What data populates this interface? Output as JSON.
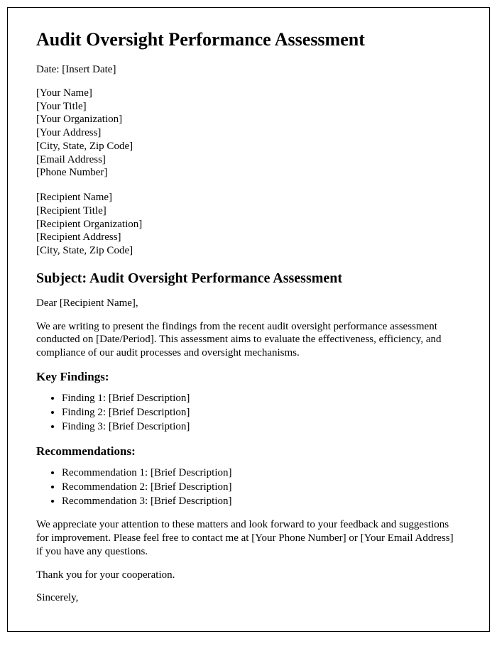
{
  "title": "Audit Oversight Performance Assessment",
  "date_line": "Date: [Insert Date]",
  "sender": {
    "name": "[Your Name]",
    "title": "[Your Title]",
    "organization": "[Your Organization]",
    "address": "[Your Address]",
    "city_state_zip": "[City, State, Zip Code]",
    "email": "[Email Address]",
    "phone": "[Phone Number]"
  },
  "recipient": {
    "name": "[Recipient Name]",
    "title": "[Recipient Title]",
    "organization": "[Recipient Organization]",
    "address": "[Recipient Address]",
    "city_state_zip": "[City, State, Zip Code]"
  },
  "subject_line": "Subject: Audit Oversight Performance Assessment",
  "salutation": "Dear [Recipient Name],",
  "intro_paragraph": "We are writing to present the findings from the recent audit oversight performance assessment conducted on [Date/Period]. This assessment aims to evaluate the effectiveness, efficiency, and compliance of our audit processes and oversight mechanisms.",
  "findings_heading": "Key Findings:",
  "findings": [
    "Finding 1: [Brief Description]",
    "Finding 2: [Brief Description]",
    "Finding 3: [Brief Description]"
  ],
  "recommendations_heading": "Recommendations:",
  "recommendations": [
    "Recommendation 1: [Brief Description]",
    "Recommendation 2: [Brief Description]",
    "Recommendation 3: [Brief Description]"
  ],
  "closing_paragraph": "We appreciate your attention to these matters and look forward to your feedback and suggestions for improvement. Please feel free to contact me at [Your Phone Number] or [Your Email Address] if you have any questions.",
  "thank_you": "Thank you for your cooperation.",
  "signoff": "Sincerely,"
}
